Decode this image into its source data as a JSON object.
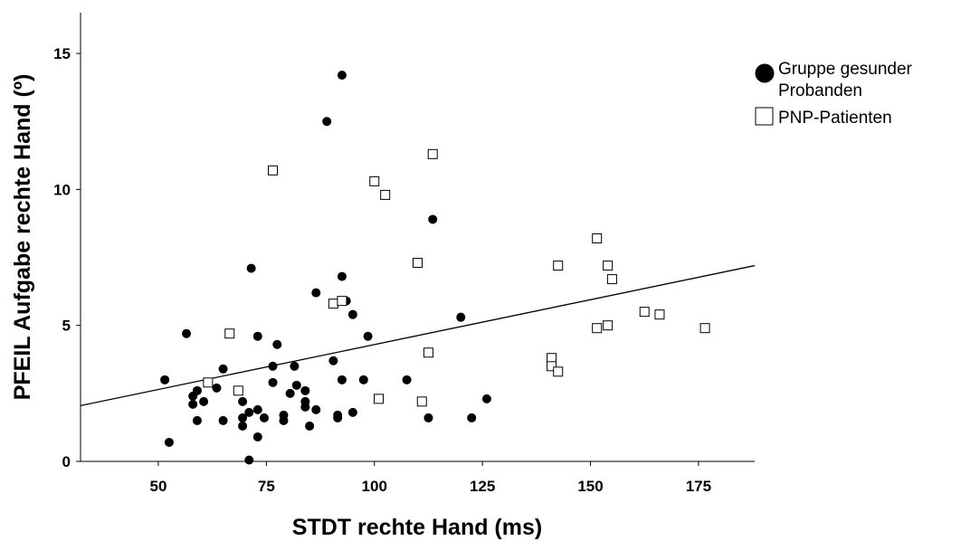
{
  "chart_data": {
    "type": "scatter",
    "xlabel": "STDT rechte Hand (ms)",
    "ylabel": "PFEIL Aufgabe rechte Hand (º)",
    "xlim": [
      32,
      188
    ],
    "ylim": [
      0,
      16.5
    ],
    "x_ticks": [
      50,
      75,
      100,
      125,
      150,
      175
    ],
    "y_ticks": [
      0,
      5,
      10,
      15
    ],
    "x_tick_labels": [
      "50",
      "75",
      "100",
      "125",
      "150",
      "175"
    ],
    "y_tick_labels": [
      "0",
      "5",
      "10",
      "15"
    ],
    "grid": false,
    "legend_position": "top-right",
    "legend": [
      {
        "label_lines": [
          "Gruppe gesunder",
          "Probanden"
        ],
        "marker": "filled-circle"
      },
      {
        "label_lines": [
          "PNP-Patienten"
        ],
        "marker": "open-square"
      }
    ],
    "series": [
      {
        "name": "Gruppe gesunder Probanden",
        "marker": "filled-circle",
        "color": "#000000",
        "points": [
          [
            92.5,
            14.2
          ],
          [
            89,
            12.5
          ],
          [
            113.5,
            8.9
          ],
          [
            71.5,
            7.1
          ],
          [
            92.5,
            6.8
          ],
          [
            86.5,
            6.2
          ],
          [
            93.5,
            5.9
          ],
          [
            95,
            5.4
          ],
          [
            120,
            5.3
          ],
          [
            56.5,
            4.7
          ],
          [
            73,
            4.6
          ],
          [
            98.5,
            4.6
          ],
          [
            77.5,
            4.3
          ],
          [
            90.5,
            3.7
          ],
          [
            76.5,
            3.5
          ],
          [
            81.5,
            3.5
          ],
          [
            65,
            3.4
          ],
          [
            51.5,
            3.0
          ],
          [
            92.5,
            3.0
          ],
          [
            97.5,
            3.0
          ],
          [
            107.5,
            3.0
          ],
          [
            76.5,
            2.9
          ],
          [
            63.5,
            2.7
          ],
          [
            82,
            2.8
          ],
          [
            84,
            2.6
          ],
          [
            59,
            2.6
          ],
          [
            58,
            2.4
          ],
          [
            80.5,
            2.5
          ],
          [
            60.5,
            2.2
          ],
          [
            69.5,
            2.2
          ],
          [
            58,
            2.1
          ],
          [
            84,
            2.2
          ],
          [
            126,
            2.3
          ],
          [
            73,
            1.9
          ],
          [
            71,
            1.8
          ],
          [
            84,
            2.0
          ],
          [
            86.5,
            1.9
          ],
          [
            95,
            1.8
          ],
          [
            79,
            1.7
          ],
          [
            91.5,
            1.7
          ],
          [
            69.5,
            1.6
          ],
          [
            74.5,
            1.6
          ],
          [
            59,
            1.5
          ],
          [
            65,
            1.5
          ],
          [
            79,
            1.5
          ],
          [
            91.5,
            1.6
          ],
          [
            112.5,
            1.6
          ],
          [
            122.5,
            1.6
          ],
          [
            69.5,
            1.3
          ],
          [
            85,
            1.3
          ],
          [
            73,
            0.9
          ],
          [
            52.5,
            0.7
          ],
          [
            71,
            0.05
          ]
        ]
      },
      {
        "name": "PNP-Patienten",
        "marker": "open-square",
        "color": "#000000",
        "points": [
          [
            113.5,
            11.3
          ],
          [
            76.5,
            10.7
          ],
          [
            100,
            10.3
          ],
          [
            102.5,
            9.8
          ],
          [
            151.5,
            8.2
          ],
          [
            110,
            7.3
          ],
          [
            142.5,
            7.2
          ],
          [
            154,
            7.2
          ],
          [
            155,
            6.7
          ],
          [
            90.5,
            5.8
          ],
          [
            92.5,
            5.9
          ],
          [
            162.5,
            5.5
          ],
          [
            166,
            5.4
          ],
          [
            154,
            5.0
          ],
          [
            151.5,
            4.9
          ],
          [
            176.5,
            4.9
          ],
          [
            66.5,
            4.7
          ],
          [
            112.5,
            4.0
          ],
          [
            141,
            3.8
          ],
          [
            141,
            3.5
          ],
          [
            142.5,
            3.3
          ],
          [
            61.5,
            2.9
          ],
          [
            68.5,
            2.6
          ],
          [
            101,
            2.3
          ],
          [
            111,
            2.2
          ]
        ]
      }
    ],
    "fit_line": {
      "type": "linear",
      "x": [
        32,
        188
      ],
      "y": [
        2.05,
        7.2
      ]
    }
  }
}
